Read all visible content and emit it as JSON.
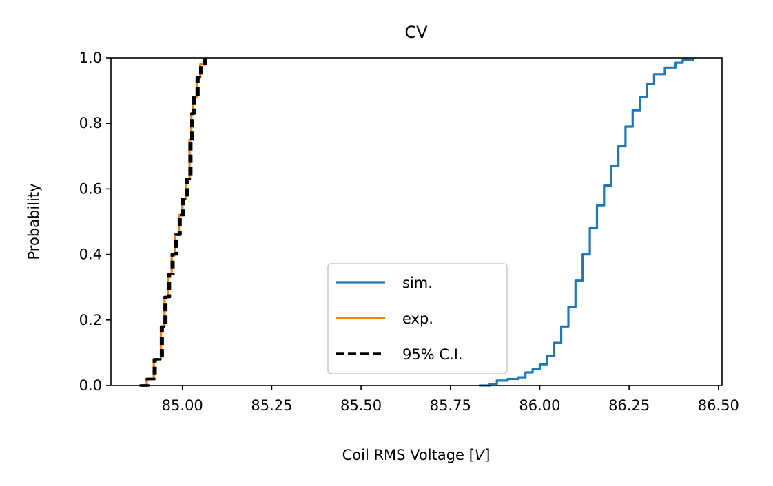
{
  "chart_data": {
    "type": "line",
    "title": "CV",
    "xlabel": "Coil RMS Voltage [V]",
    "xlabel_prefix": "Coil RMS Voltage [",
    "xlabel_unit": "V",
    "xlabel_suffix": "]",
    "ylabel": "Probability",
    "xlim": [
      84.8,
      86.51
    ],
    "ylim": [
      0.0,
      1.0
    ],
    "xticks": [
      85.0,
      85.25,
      85.5,
      85.75,
      86.0,
      86.25,
      86.5
    ],
    "xtick_labels": [
      "85.00",
      "85.25",
      "85.50",
      "85.75",
      "86.00",
      "86.25",
      "86.50"
    ],
    "yticks": [
      0.0,
      0.2,
      0.4,
      0.6,
      0.8,
      1.0
    ],
    "ytick_labels": [
      "0.0",
      "0.2",
      "0.4",
      "0.6",
      "0.8",
      "1.0"
    ],
    "grid": false,
    "legend": {
      "placement": "lower-center",
      "entries": [
        {
          "label": "sim.",
          "color": "#1f77b4",
          "style": "solid"
        },
        {
          "label": "exp.",
          "color": "#ff7f0e",
          "style": "solid"
        },
        {
          "label": "95% C.I.",
          "color": "#000000",
          "style": "dashed"
        }
      ]
    },
    "series": [
      {
        "name": "sim.",
        "color": "#1f77b4",
        "style": "solid",
        "points": [
          [
            85.83,
            0.0
          ],
          [
            85.86,
            0.005
          ],
          [
            85.88,
            0.015
          ],
          [
            85.91,
            0.02
          ],
          [
            85.94,
            0.025
          ],
          [
            85.96,
            0.04
          ],
          [
            85.98,
            0.05
          ],
          [
            86.0,
            0.065
          ],
          [
            86.02,
            0.09
          ],
          [
            86.04,
            0.13
          ],
          [
            86.06,
            0.18
          ],
          [
            86.08,
            0.24
          ],
          [
            86.1,
            0.32
          ],
          [
            86.12,
            0.4
          ],
          [
            86.14,
            0.48
          ],
          [
            86.16,
            0.55
          ],
          [
            86.18,
            0.61
          ],
          [
            86.2,
            0.67
          ],
          [
            86.22,
            0.73
          ],
          [
            86.24,
            0.79
          ],
          [
            86.26,
            0.84
          ],
          [
            86.28,
            0.88
          ],
          [
            86.3,
            0.92
          ],
          [
            86.32,
            0.95
          ],
          [
            86.35,
            0.97
          ],
          [
            86.38,
            0.985
          ],
          [
            86.4,
            0.995
          ],
          [
            86.43,
            1.0
          ]
        ]
      },
      {
        "name": "exp.",
        "color": "#ff7f0e",
        "style": "solid",
        "points": [
          [
            84.88,
            0.0
          ],
          [
            84.9,
            0.02
          ],
          [
            84.92,
            0.08
          ],
          [
            84.94,
            0.18
          ],
          [
            84.95,
            0.27
          ],
          [
            84.96,
            0.34
          ],
          [
            84.97,
            0.4
          ],
          [
            84.98,
            0.46
          ],
          [
            84.99,
            0.52
          ],
          [
            85.0,
            0.57
          ],
          [
            85.01,
            0.63
          ],
          [
            85.02,
            0.75
          ],
          [
            85.025,
            0.83
          ],
          [
            85.03,
            0.88
          ],
          [
            85.04,
            0.94
          ],
          [
            85.05,
            0.98
          ],
          [
            85.06,
            1.0
          ]
        ]
      },
      {
        "name": "95% C.I.",
        "color": "#000000",
        "style": "dashed",
        "points": [
          [
            84.88,
            0.0
          ],
          [
            84.9,
            0.02
          ],
          [
            84.92,
            0.08
          ],
          [
            84.94,
            0.18
          ],
          [
            84.95,
            0.27
          ],
          [
            84.96,
            0.34
          ],
          [
            84.97,
            0.4
          ],
          [
            84.98,
            0.46
          ],
          [
            84.99,
            0.52
          ],
          [
            85.0,
            0.57
          ],
          [
            85.01,
            0.63
          ],
          [
            85.02,
            0.75
          ],
          [
            85.025,
            0.83
          ],
          [
            85.03,
            0.88
          ],
          [
            85.04,
            0.94
          ],
          [
            85.05,
            0.98
          ],
          [
            85.06,
            1.0
          ]
        ]
      },
      {
        "name": "95% C.I.",
        "color": "#000000",
        "style": "dashed",
        "points": [
          [
            84.885,
            0.0
          ],
          [
            84.905,
            0.02
          ],
          [
            84.925,
            0.08
          ],
          [
            84.945,
            0.18
          ],
          [
            84.955,
            0.27
          ],
          [
            84.965,
            0.34
          ],
          [
            84.975,
            0.4
          ],
          [
            84.985,
            0.46
          ],
          [
            84.995,
            0.52
          ],
          [
            85.005,
            0.57
          ],
          [
            85.015,
            0.63
          ],
          [
            85.025,
            0.75
          ],
          [
            85.03,
            0.83
          ],
          [
            85.035,
            0.88
          ],
          [
            85.045,
            0.94
          ],
          [
            85.055,
            0.98
          ],
          [
            85.065,
            1.0
          ]
        ]
      }
    ]
  }
}
